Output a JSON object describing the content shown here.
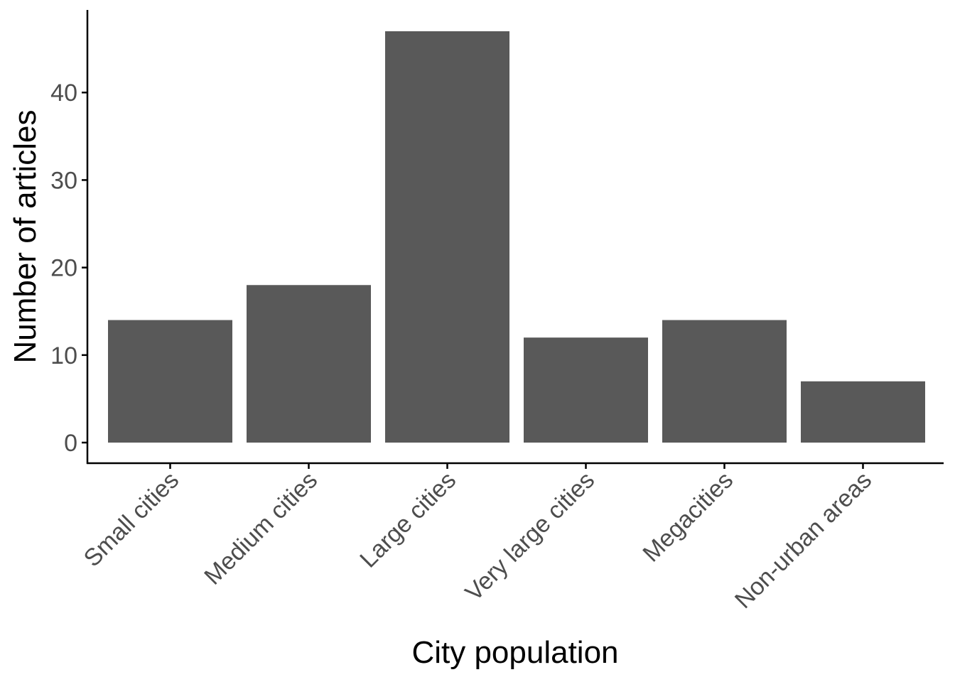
{
  "chart_data": {
    "type": "bar",
    "categories": [
      "Small cities",
      "Medium cities",
      "Large cities",
      "Very large cities",
      "Megacities",
      "Non-urban areas"
    ],
    "values": [
      14,
      18,
      47,
      12,
      14,
      7
    ],
    "xlabel": "City population",
    "ylabel": "Number of articles",
    "ylim": [
      0,
      47
    ],
    "yticks": [
      0,
      10,
      20,
      30,
      40
    ],
    "grid": false,
    "colors": {
      "bar": "#595959",
      "axis": "#000000",
      "tick_label": "#4d4d4d"
    }
  }
}
